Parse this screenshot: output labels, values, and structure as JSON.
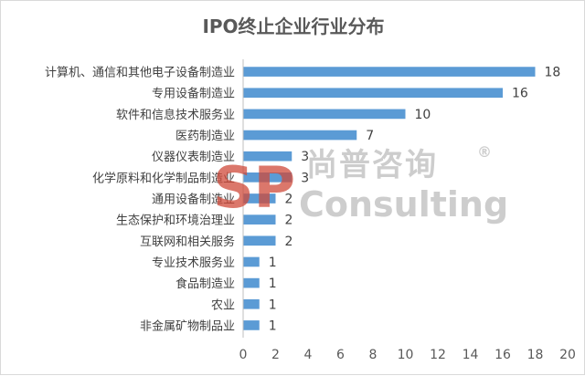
{
  "chart_data": {
    "type": "bar",
    "orientation": "horizontal",
    "title": "IPO终止企业行业分布",
    "categories": [
      "计算机、通信和其他电子设备制造业",
      "专用设备制造业",
      "软件和信息技术服务业",
      "医药制造业",
      "仪器仪表制造业",
      "化学原料和化学制品制造业",
      "通用设备制造业",
      "生态保护和环境治理业",
      "互联网和相关服务",
      "专业技术服务业",
      "食品制造业",
      "农业",
      "非金属矿物制品业"
    ],
    "values": [
      18,
      16,
      10,
      7,
      3,
      3,
      2,
      2,
      2,
      1,
      1,
      1,
      1
    ],
    "xlim": [
      0,
      20
    ],
    "xticks": [
      0,
      2,
      4,
      6,
      8,
      10,
      12,
      14,
      16,
      18,
      20
    ],
    "data_labels": true,
    "grid": false,
    "legend": "none",
    "bar_color": "#5b9bd5"
  },
  "watermark": {
    "logo_text": "SP",
    "cn_text": "尚普咨询",
    "registered": "®",
    "en_text": "Consulting"
  }
}
